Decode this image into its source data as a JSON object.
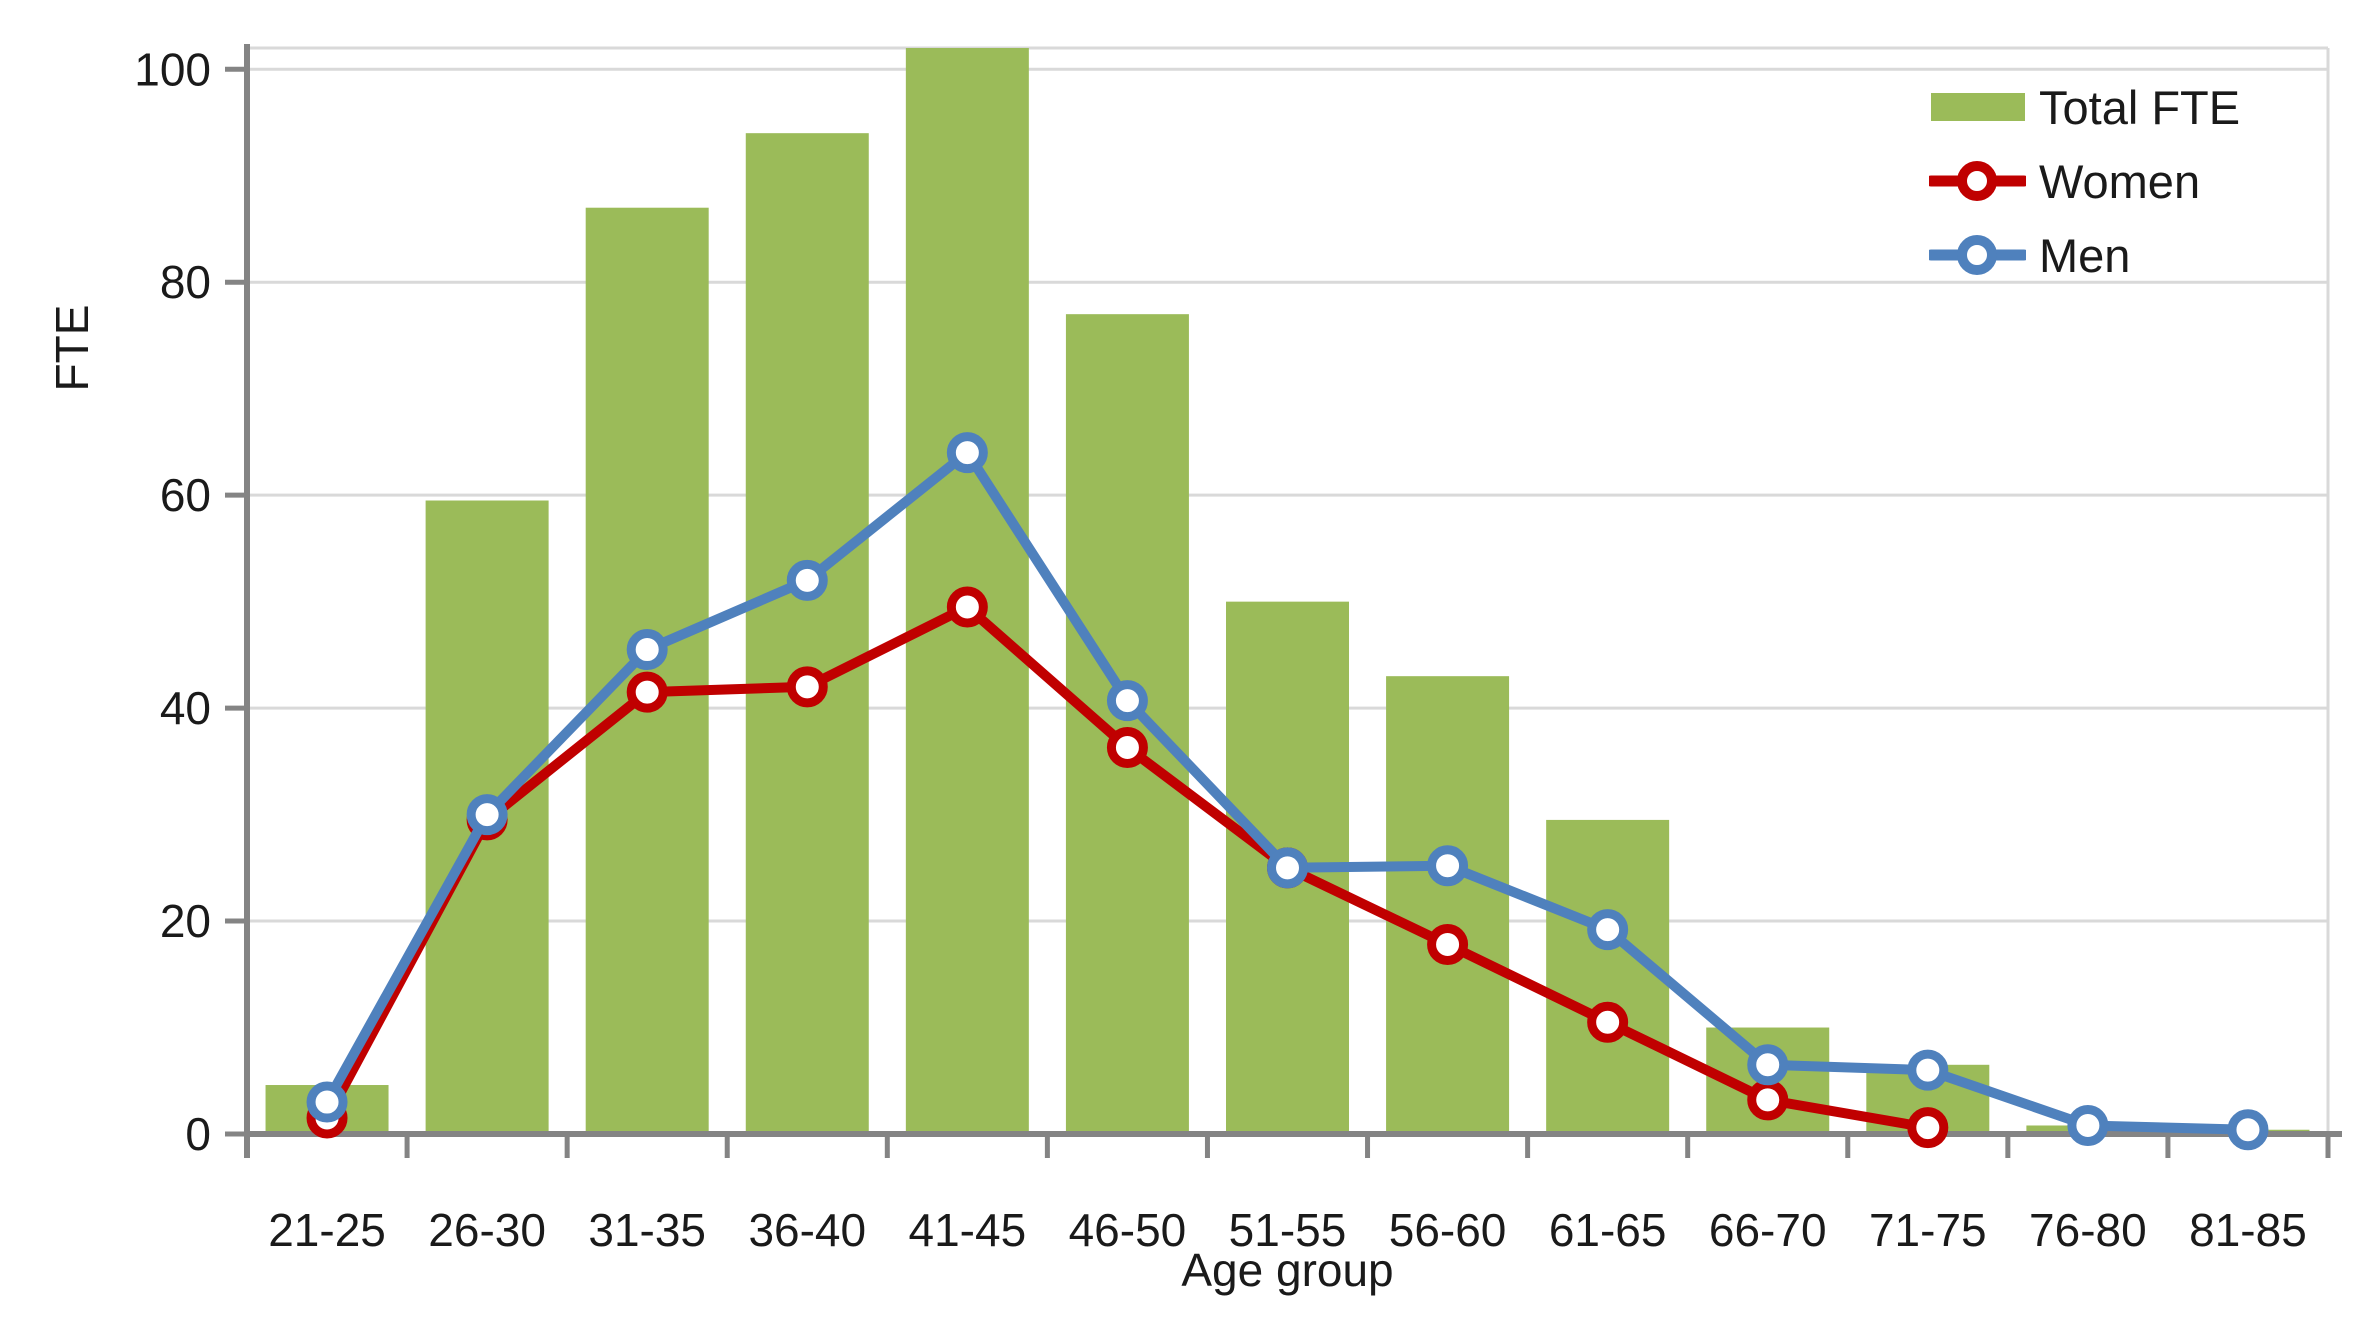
{
  "page": {
    "background_color": "#FFFFFF"
  },
  "chart_data": {
    "type": "bar+line",
    "title": "",
    "xlabel": "Age group",
    "ylabel": "FTE",
    "categories": [
      "21-25",
      "26-30",
      "31-35",
      "36-40",
      "41-45",
      "46-50",
      "51-55",
      "56-60",
      "61-65",
      "66-70",
      "71-75",
      "76-80",
      "81-85"
    ],
    "series": [
      {
        "name": "Total FTE",
        "type": "bar",
        "color": "#9BBB59",
        "values": [
          4.6,
          59.5,
          87,
          94,
          102,
          77,
          50,
          43,
          29.5,
          10,
          6.5,
          0.8,
          0.4
        ]
      },
      {
        "name": "Women",
        "type": "line",
        "marker": "circle",
        "color": "#C00000",
        "values": [
          1.5,
          29.5,
          41.5,
          42,
          49.5,
          36.3,
          25,
          17.8,
          10.5,
          3.2,
          0.6,
          null,
          null
        ]
      },
      {
        "name": "Men",
        "type": "line",
        "marker": "circle",
        "color": "#4F81BD",
        "values": [
          3,
          30,
          45.5,
          52,
          64,
          40.7,
          25,
          25.2,
          19.2,
          6.5,
          6,
          0.8,
          0.4
        ]
      }
    ],
    "ylim": [
      0,
      102
    ],
    "yticks": [
      0,
      20,
      40,
      60,
      80,
      100
    ],
    "grid": "horizontal",
    "legend_position": "top-right",
    "grid_color": "#D9D9D9",
    "axis_color": "#848484",
    "text_color": "#1a1a1a"
  }
}
